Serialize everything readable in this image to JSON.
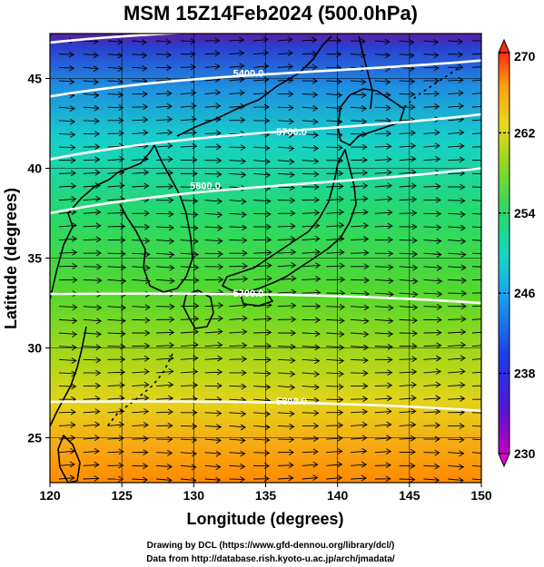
{
  "figure": {
    "title": "MSM 15Z14Feb2024 (500.0hPa)",
    "xlabel": "Longitude (degrees)",
    "ylabel": "Latitude  (degrees)",
    "credit_line1": "Drawing by DCL (https://www.gfd-dennou.org/library/dcl/)",
    "credit_line2": "Data from http://database.rish.kyoto-u.ac.jp/arch/jmadata/"
  },
  "map_extent": {
    "lon": [
      120,
      150
    ],
    "lat": [
      22.5,
      47.5
    ]
  },
  "xticks": [
    {
      "value": 120,
      "label": "120"
    },
    {
      "value": 125,
      "label": "125"
    },
    {
      "value": 130,
      "label": "130"
    },
    {
      "value": 135,
      "label": "135"
    },
    {
      "value": 140,
      "label": "140"
    },
    {
      "value": 145,
      "label": "145"
    },
    {
      "value": 150,
      "label": "150"
    }
  ],
  "yticks": [
    {
      "value": 25,
      "label": "25"
    },
    {
      "value": 30,
      "label": "30"
    },
    {
      "value": 35,
      "label": "35"
    },
    {
      "value": 40,
      "label": "40"
    },
    {
      "value": 45,
      "label": "45"
    }
  ],
  "colorbar": {
    "range": [
      230,
      270
    ],
    "ticks": [
      {
        "value": 270,
        "label": "270"
      },
      {
        "value": 262,
        "label": "262"
      },
      {
        "value": 254,
        "label": "254"
      },
      {
        "value": 246,
        "label": "246"
      },
      {
        "value": 238,
        "label": "238"
      },
      {
        "value": 230,
        "label": "230"
      }
    ]
  },
  "contours": [
    {
      "label": "5500.0",
      "lat_at_west": 47.0,
      "lat_at_east": 48.0
    },
    {
      "label": "5400.0",
      "lat_at_west": 44.0,
      "lat_at_east": 46.0
    },
    {
      "label": "5700.0",
      "lat_at_west": 40.5,
      "lat_at_east": 43.0
    },
    {
      "label": "5800.0",
      "lat_at_west": 37.5,
      "lat_at_east": 40.0
    },
    {
      "label": "5700.0",
      "lat_at_west": 33.0,
      "lat_at_east": 32.5
    },
    {
      "label": "5800.0",
      "lat_at_west": 27.0,
      "lat_at_east": 26.5
    }
  ],
  "colors": {
    "cold": "#6a0dad",
    "mid": "#22c55e",
    "warm": "#ff8a00",
    "contour": "#ffffff",
    "vector": "#000000"
  }
}
